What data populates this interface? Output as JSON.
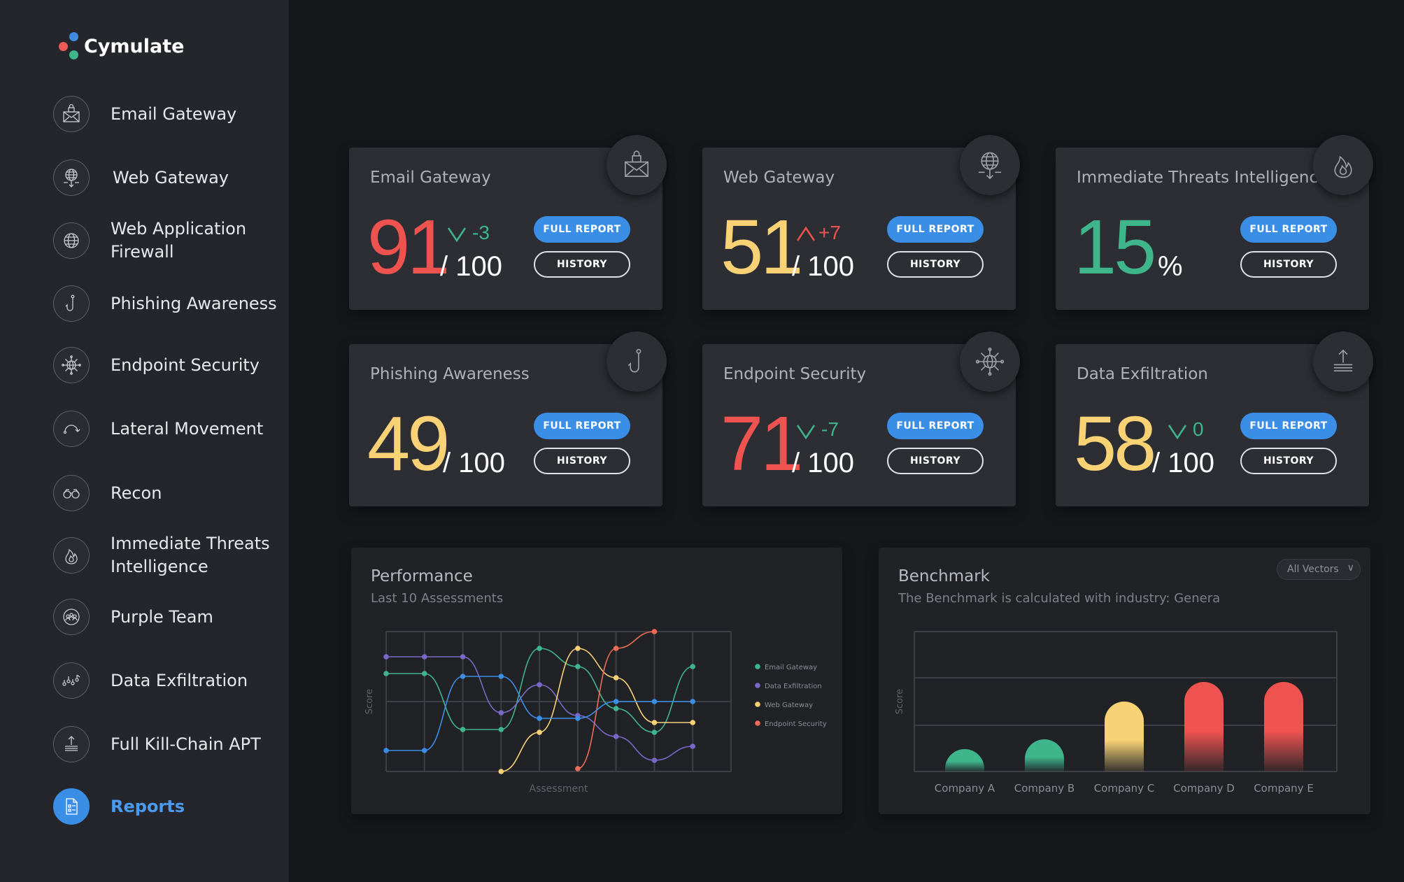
{
  "app": {
    "name": "Cymulate"
  },
  "colors": {
    "red": "#ef5350",
    "yellow": "#f9d276",
    "green": "#3fb58c",
    "blue": "#3a8ee6",
    "purple": "#7a68c8",
    "orange": "#ef6b56"
  },
  "sidebar": {
    "items": [
      {
        "label": "Email Gateway",
        "icon": "envelope-lock-icon"
      },
      {
        "label": "Web Gateway",
        "icon": "globe-arrows-icon"
      },
      {
        "label": "Web Application Firewall",
        "icon": "globe-icon"
      },
      {
        "label": "Phishing Awareness",
        "icon": "fish-hook-icon"
      },
      {
        "label": "Endpoint Security",
        "icon": "network-globe-icon"
      },
      {
        "label": "Lateral Movement",
        "icon": "curved-arrow-icon"
      },
      {
        "label": "Recon",
        "icon": "binoculars-icon"
      },
      {
        "label": "Immediate Threats Intelligence",
        "icon": "flame-icon"
      },
      {
        "label": "Purple Team",
        "icon": "team-icon"
      },
      {
        "label": "Data Exfiltration",
        "icon": "data-chain-icon"
      },
      {
        "label": "Full Kill-Chain APT",
        "icon": "upload-layers-icon"
      },
      {
        "label": "Reports",
        "icon": "report-doc-icon",
        "active": true
      }
    ]
  },
  "cards": [
    {
      "title": "Email Gateway",
      "score": "91",
      "outof": "/ 100",
      "delta": "-3",
      "trend": "down",
      "icon": "envelope-lock-icon",
      "full_report": "FULL REPORT",
      "history": "HISTORY"
    },
    {
      "title": "Web Gateway",
      "score": "51",
      "outof": "/ 100",
      "delta": "+7",
      "trend": "up",
      "icon": "globe-arrows-icon",
      "full_report": "FULL REPORT",
      "history": "HISTORY"
    },
    {
      "title": "Immediate Threats Intelligence",
      "score": "15",
      "unit": "%",
      "icon": "flame-icon",
      "full_report": "FULL REPORT",
      "history": "HISTORY"
    },
    {
      "title": "Phishing Awareness",
      "score": "49",
      "outof": "/ 100",
      "icon": "fish-hook-icon",
      "full_report": "FULL REPORT",
      "history": "HISTORY"
    },
    {
      "title": "Endpoint Security",
      "score": "71",
      "outof": "/ 100",
      "delta": "-7",
      "trend": "down",
      "icon": "network-globe-icon",
      "full_report": "FULL REPORT",
      "history": "HISTORY"
    },
    {
      "title": "Data Exfiltration",
      "score": "58",
      "outof": "/ 100",
      "delta": "0",
      "trend": "down",
      "icon": "upload-layers-icon",
      "full_report": "FULL REPORT",
      "history": "HISTORY"
    }
  ],
  "performance": {
    "title": "Performance",
    "subtitle": "Last 10 Assessments"
  },
  "benchmark": {
    "title": "Benchmark",
    "subtitle": "The Benchmark is calculated with industry: Genera",
    "dropdown": "All Vectors"
  },
  "chart_data": [
    {
      "type": "line",
      "title": "Performance",
      "xlabel": "Assessment",
      "ylabel": "Score",
      "x": [
        1,
        2,
        3,
        4,
        5,
        6,
        7,
        8,
        9,
        10
      ],
      "ylim": [
        0,
        100
      ],
      "grid": true,
      "legend": "right",
      "series": [
        {
          "name": "Email Gateway",
          "color": "#3fb58c",
          "values": [
            70,
            70,
            30,
            30,
            88,
            75,
            45,
            28,
            75,
            null
          ]
        },
        {
          "name": "Data Exfiltration",
          "color": "#7a68c8",
          "values": [
            82,
            82,
            82,
            42,
            62,
            40,
            25,
            8,
            18,
            null
          ]
        },
        {
          "name": "Web Gateway",
          "color": "#f9d276",
          "values": [
            null,
            null,
            null,
            0,
            28,
            88,
            67,
            35,
            35,
            null
          ]
        },
        {
          "name": "Endpoint Security",
          "color": "#ef6b56",
          "values": [
            null,
            null,
            null,
            null,
            null,
            2,
            88,
            100,
            null,
            null
          ]
        },
        {
          "name": "",
          "color": "#3a8ee6",
          "values": [
            15,
            15,
            68,
            68,
            38,
            38,
            50,
            50,
            50,
            null
          ]
        }
      ]
    },
    {
      "type": "bar",
      "title": "Benchmark",
      "ylabel": "Score",
      "categories": [
        "Company A",
        "Company B",
        "Company C",
        "Company D",
        "Company E"
      ],
      "values": [
        16,
        23,
        50,
        64,
        64
      ],
      "colors": [
        "#3fb58c",
        "#3fb58c",
        "#f9d276",
        "#ef5350",
        "#ef5350"
      ],
      "ylim": [
        0,
        100
      ],
      "grid": true
    }
  ]
}
